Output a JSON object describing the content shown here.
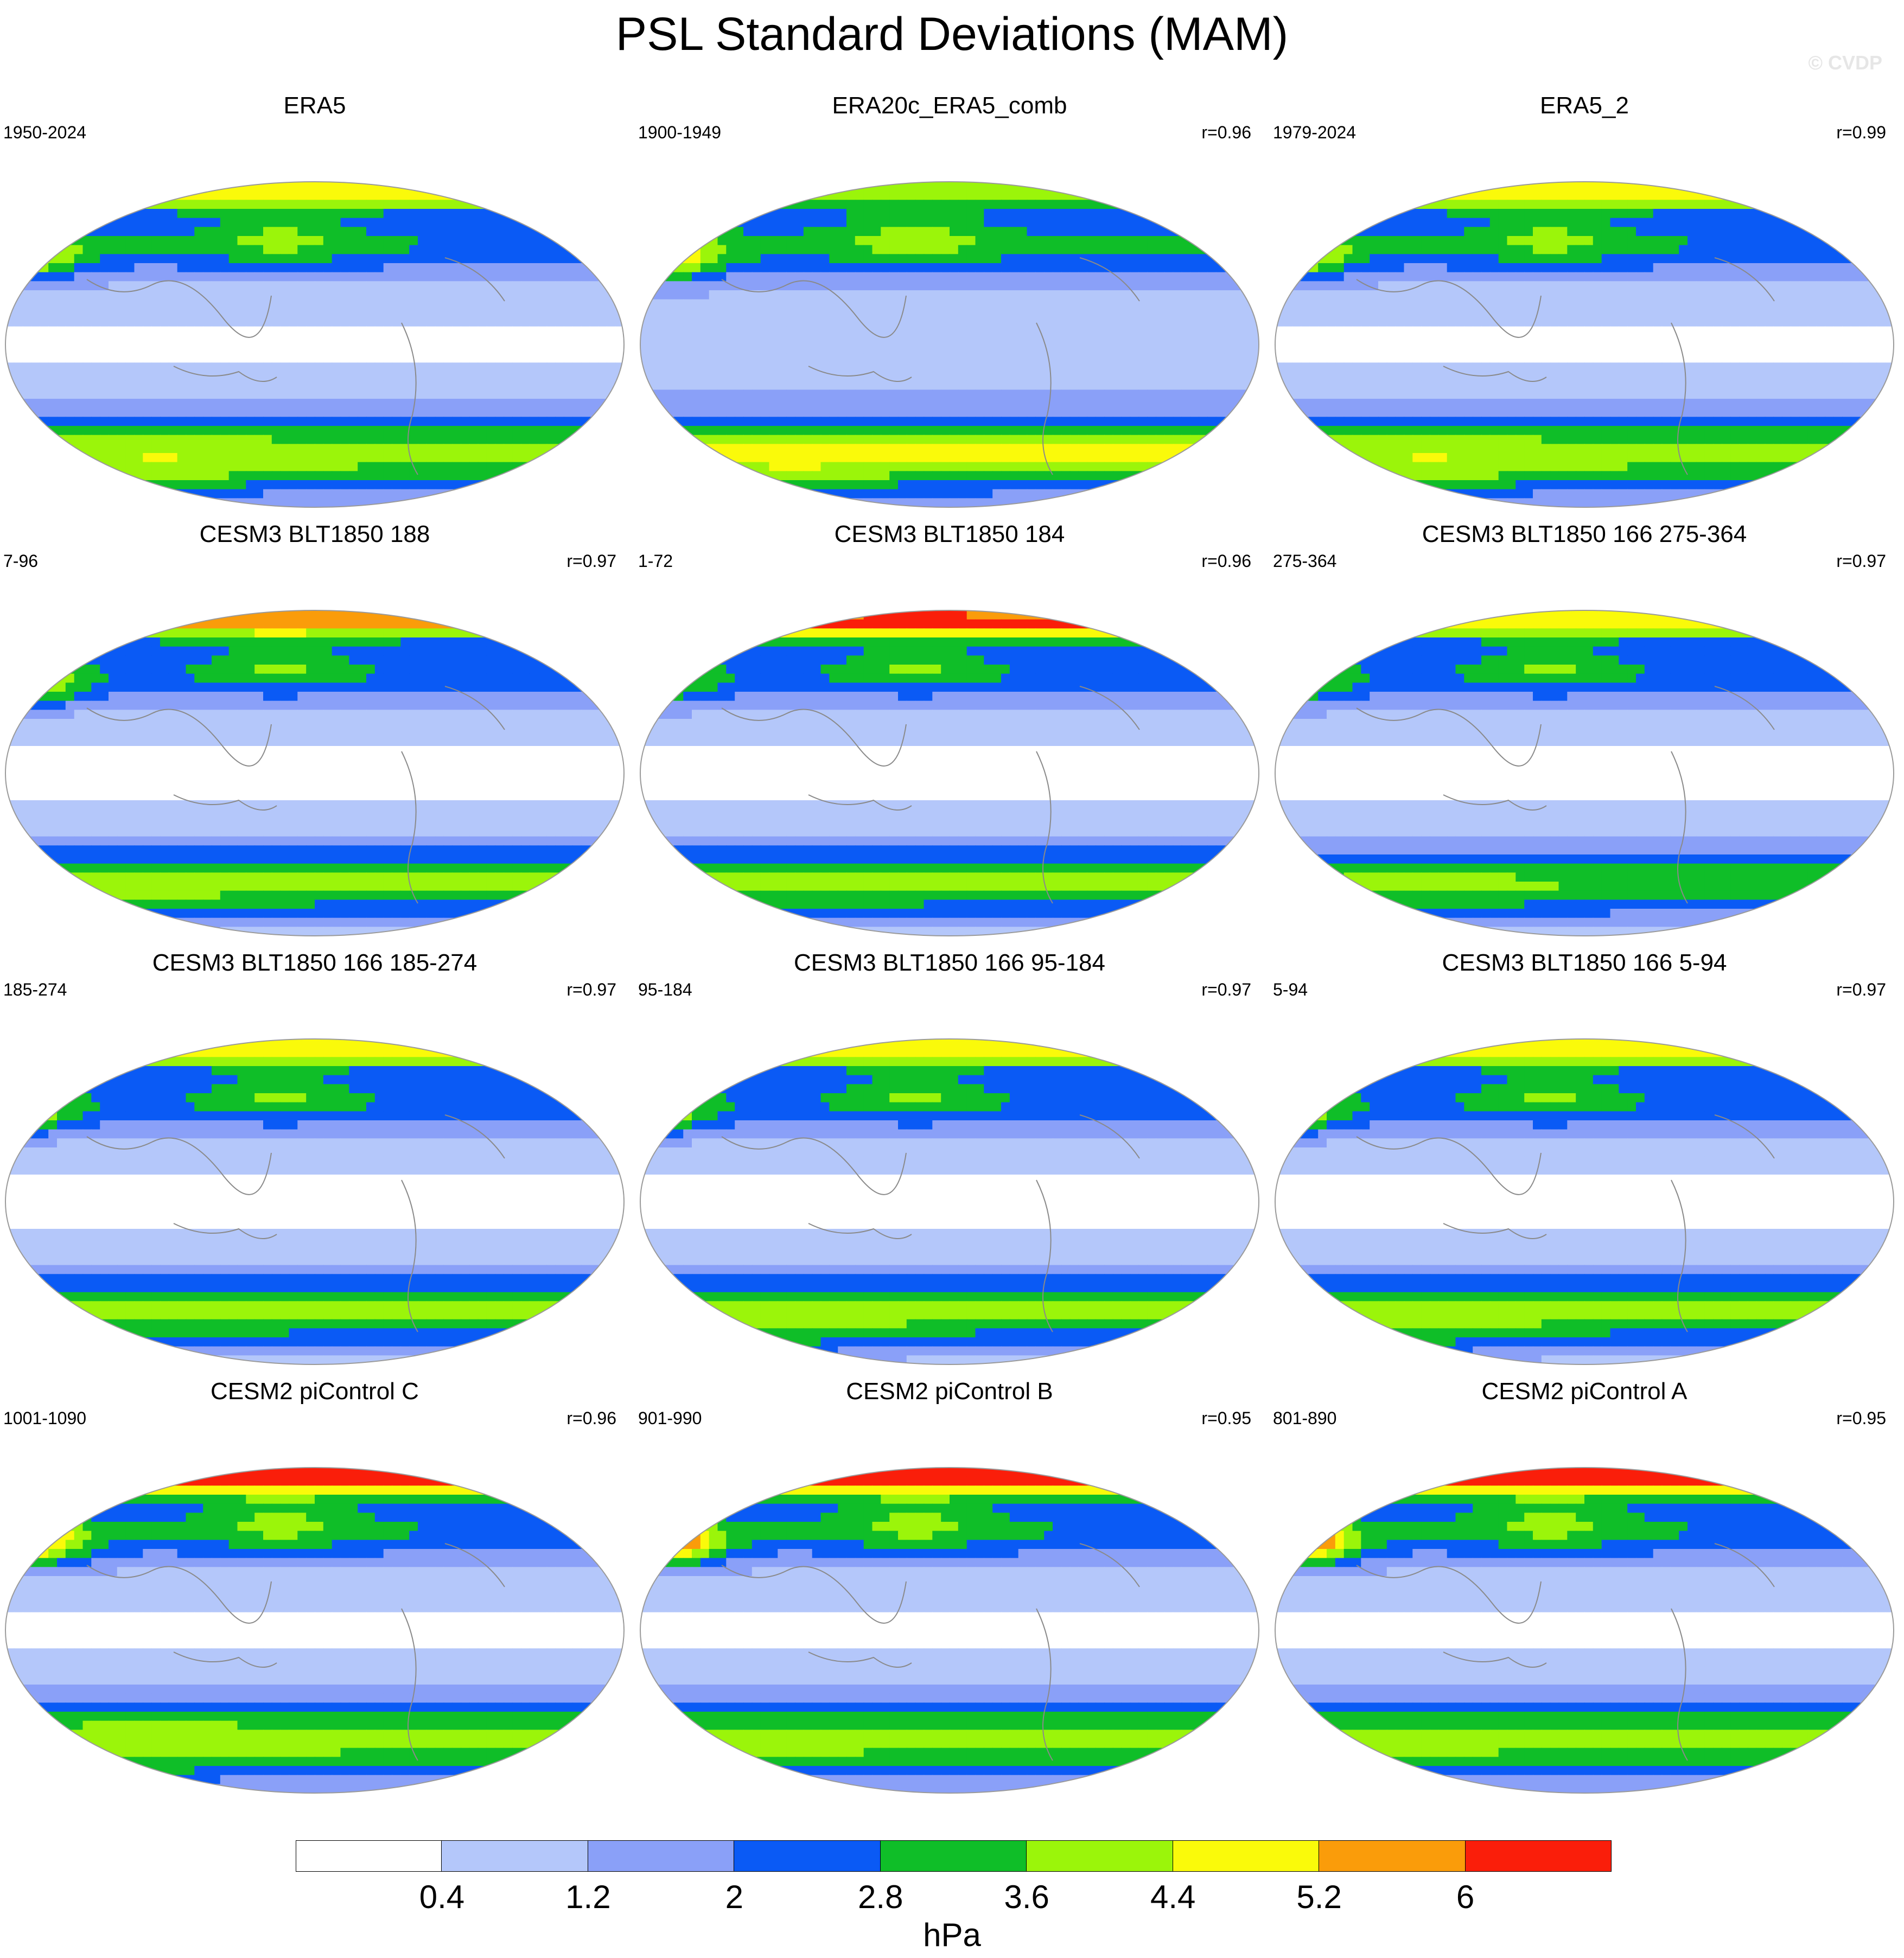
{
  "title": "PSL Standard Deviations (MAM)",
  "watermark": "© CVDP",
  "colorbar": {
    "unit": "hPa",
    "levels": [
      "0.4",
      "1.2",
      "2",
      "2.8",
      "3.6",
      "4.4",
      "5.2",
      "6"
    ],
    "colors": [
      "#ffffff",
      "#b4c7fa",
      "#8aa0f8",
      "#0a5af5",
      "#0fbe28",
      "#9bf50a",
      "#fafa0a",
      "#fa9c0a",
      "#fa1e0a"
    ]
  },
  "panels": [
    {
      "title": "ERA5",
      "period": "1950-2024",
      "corr": "",
      "nh_max": 5.0,
      "np_max": 3.8,
      "sh_max": 5.0,
      "sh_mid": 4.0,
      "trop": 0.8
    },
    {
      "title": "ERA20c_ERA5_comb",
      "period": "1900-1949",
      "corr": "r=0.96",
      "nh_max": 4.0,
      "np_max": 4.2,
      "sh_max": 5.0,
      "sh_mid": 4.6,
      "trop": 1.0
    },
    {
      "title": "ERA5_2",
      "period": "1979-2024",
      "corr": "r=0.99",
      "nh_max": 5.0,
      "np_max": 3.8,
      "sh_max": 5.0,
      "sh_mid": 4.0,
      "trop": 0.8
    },
    {
      "title": "CESM3 BLT1850 188",
      "period": "7-96",
      "corr": "r=0.97",
      "nh_max": 5.6,
      "np_max": 3.8,
      "sh_max": 4.2,
      "sh_mid": 3.8,
      "trop": 0.6
    },
    {
      "title": "CESM3 BLT1850 184",
      "period": "1-72",
      "corr": "r=0.96",
      "nh_max": 6.2,
      "np_max": 3.0,
      "sh_max": 4.0,
      "sh_mid": 3.8,
      "trop": 0.6
    },
    {
      "title": "CESM3 BLT1850 166 275-364",
      "period": "275-364",
      "corr": "r=0.97",
      "nh_max": 5.0,
      "np_max": 3.0,
      "sh_max": 4.0,
      "sh_mid": 3.6,
      "trop": 0.6
    },
    {
      "title": "CESM3 BLT1850 166 185-274",
      "period": "185-274",
      "corr": "r=0.97",
      "nh_max": 5.0,
      "np_max": 3.2,
      "sh_max": 4.0,
      "sh_mid": 3.8,
      "trop": 0.6
    },
    {
      "title": "CESM3 BLT1850 166 95-184",
      "period": "95-184",
      "corr": "r=0.97",
      "nh_max": 5.0,
      "np_max": 3.2,
      "sh_max": 4.6,
      "sh_mid": 3.8,
      "trop": 0.6
    },
    {
      "title": "CESM3 BLT1850 166 5-94",
      "period": "5-94",
      "corr": "r=0.97",
      "nh_max": 5.0,
      "np_max": 3.2,
      "sh_max": 4.6,
      "sh_mid": 3.8,
      "trop": 0.6
    },
    {
      "title": "CESM2 piControl C",
      "period": "1001-1090",
      "corr": "r=0.96",
      "nh_max": 6.4,
      "np_max": 4.8,
      "sh_max": 4.6,
      "sh_mid": 4.0,
      "trop": 0.8
    },
    {
      "title": "CESM2 piControl B",
      "period": "901-990",
      "corr": "r=0.95",
      "nh_max": 6.4,
      "np_max": 5.4,
      "sh_max": 4.2,
      "sh_mid": 3.8,
      "trop": 0.8
    },
    {
      "title": "CESM2 piControl A",
      "period": "801-890",
      "corr": "r=0.95",
      "nh_max": 6.4,
      "np_max": 5.4,
      "sh_max": 4.2,
      "sh_mid": 3.8,
      "trop": 0.8
    }
  ]
}
